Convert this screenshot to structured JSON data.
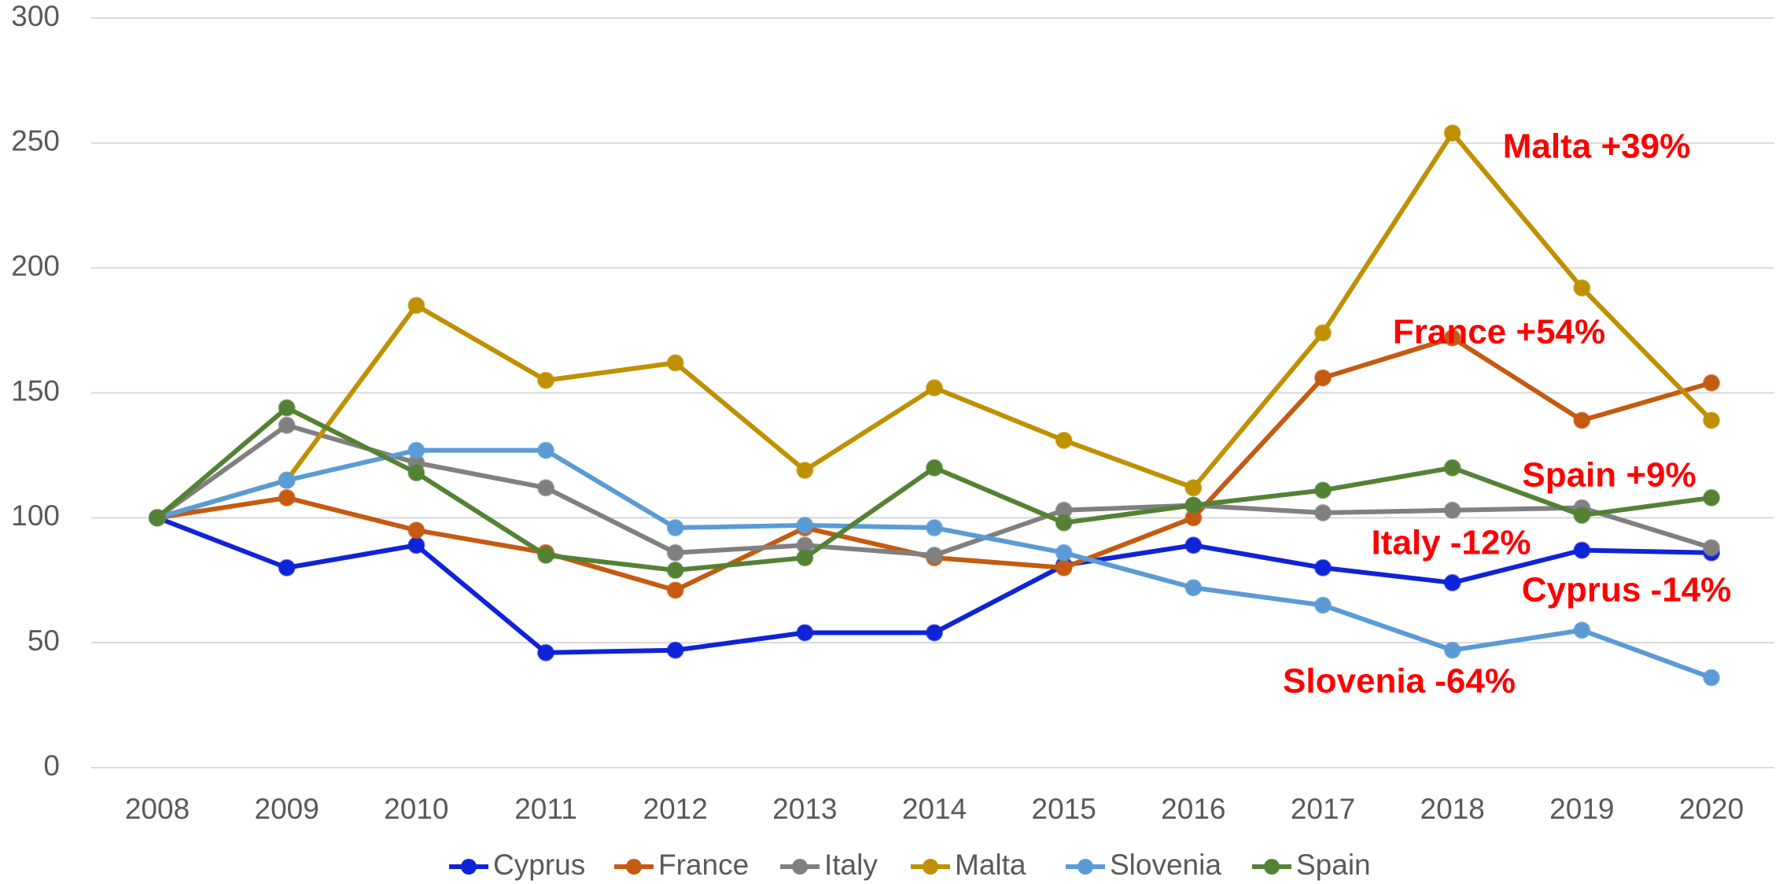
{
  "chart_data": {
    "type": "line",
    "categories": [
      "2008",
      "2009",
      "2010",
      "2011",
      "2012",
      "2013",
      "2014",
      "2015",
      "2016",
      "2017",
      "2018",
      "2019",
      "2020"
    ],
    "ylim": [
      0,
      300
    ],
    "yticks": [
      0,
      50,
      100,
      150,
      200,
      250,
      300
    ],
    "grid": true,
    "legend": "bottom",
    "series": [
      {
        "name": "Cyprus",
        "color": "#0f24d6",
        "values": [
          100,
          80,
          89,
          46,
          47,
          54,
          54,
          81,
          89,
          80,
          74,
          87,
          86
        ]
      },
      {
        "name": "France",
        "color": "#c55a11",
        "values": [
          100,
          108,
          95,
          86,
          71,
          96,
          84,
          80,
          100,
          156,
          172,
          139,
          154
        ]
      },
      {
        "name": "Italy",
        "color": "#808080",
        "values": [
          100,
          137,
          122,
          112,
          86,
          89,
          85,
          103,
          105,
          102,
          103,
          104,
          88
        ]
      },
      {
        "name": "Malta",
        "color": "#bf9000",
        "values": [
          100,
          115,
          185,
          155,
          162,
          119,
          152,
          131,
          112,
          174,
          254,
          192,
          139
        ]
      },
      {
        "name": "Slovenia",
        "color": "#5b9bd5",
        "values": [
          100,
          115,
          127,
          127,
          96,
          97,
          96,
          86,
          72,
          65,
          47,
          55,
          36
        ]
      },
      {
        "name": "Spain",
        "color": "#548235",
        "values": [
          100,
          144,
          118,
          85,
          79,
          84,
          120,
          98,
          105,
          111,
          120,
          101,
          108
        ]
      }
    ],
    "annotations": [
      "Malta +39%",
      "France +54%",
      "Spain +9%",
      "Italy -12%",
      "Cyprus -14%",
      "Slovenia -64%"
    ]
  }
}
